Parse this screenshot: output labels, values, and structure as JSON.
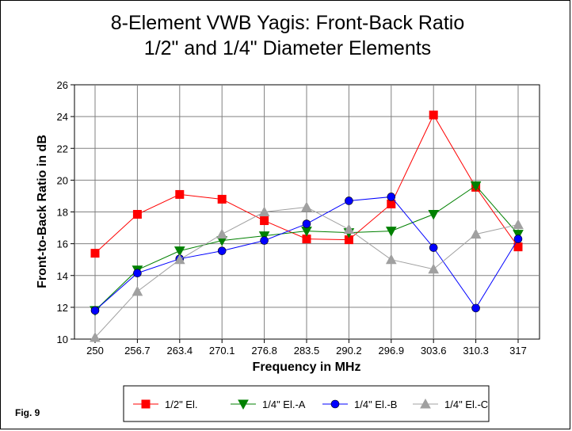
{
  "figure_label": "Fig. 9",
  "chart_data": {
    "type": "line",
    "title": "8-Element VWB Yagis:  Front-Back Ratio",
    "subtitle": "1/2\" and 1/4\" Diameter Elements",
    "xlabel": "Frequency in MHz",
    "ylabel": "Front-to-Back Ratio in dB",
    "categories": [
      "250",
      "256.7",
      "263.4",
      "270.1",
      "276.8",
      "283.5",
      "290.2",
      "296.9",
      "303.6",
      "310.3",
      "317"
    ],
    "ylim": [
      10,
      26
    ],
    "yticks": [
      10,
      12,
      14,
      16,
      18,
      20,
      22,
      24,
      26
    ],
    "grid": true,
    "legend_position": "bottom",
    "series": [
      {
        "name": "1/2\" El.",
        "color": "#ff0000",
        "marker": "square",
        "values": [
          15.4,
          17.85,
          19.1,
          18.8,
          17.45,
          16.3,
          16.25,
          18.5,
          24.1,
          19.55,
          15.8
        ]
      },
      {
        "name": "1/4\" El.-A",
        "color": "#008000",
        "marker": "triangle-down",
        "values": [
          11.8,
          14.35,
          15.55,
          16.2,
          16.5,
          16.8,
          16.7,
          16.8,
          17.85,
          19.65,
          16.6
        ]
      },
      {
        "name": "1/4\" El.-B",
        "color": "#0000ff",
        "marker": "circle",
        "values": [
          11.8,
          14.15,
          15.05,
          15.55,
          16.2,
          17.25,
          18.7,
          18.95,
          15.75,
          11.95,
          16.3
        ]
      },
      {
        "name": "1/4\" El.-C",
        "color": "#a0a0a0",
        "marker": "triangle-up",
        "values": [
          10.1,
          13.0,
          15.0,
          16.6,
          18.0,
          18.3,
          16.9,
          15.0,
          14.4,
          16.6,
          17.2
        ]
      }
    ]
  }
}
